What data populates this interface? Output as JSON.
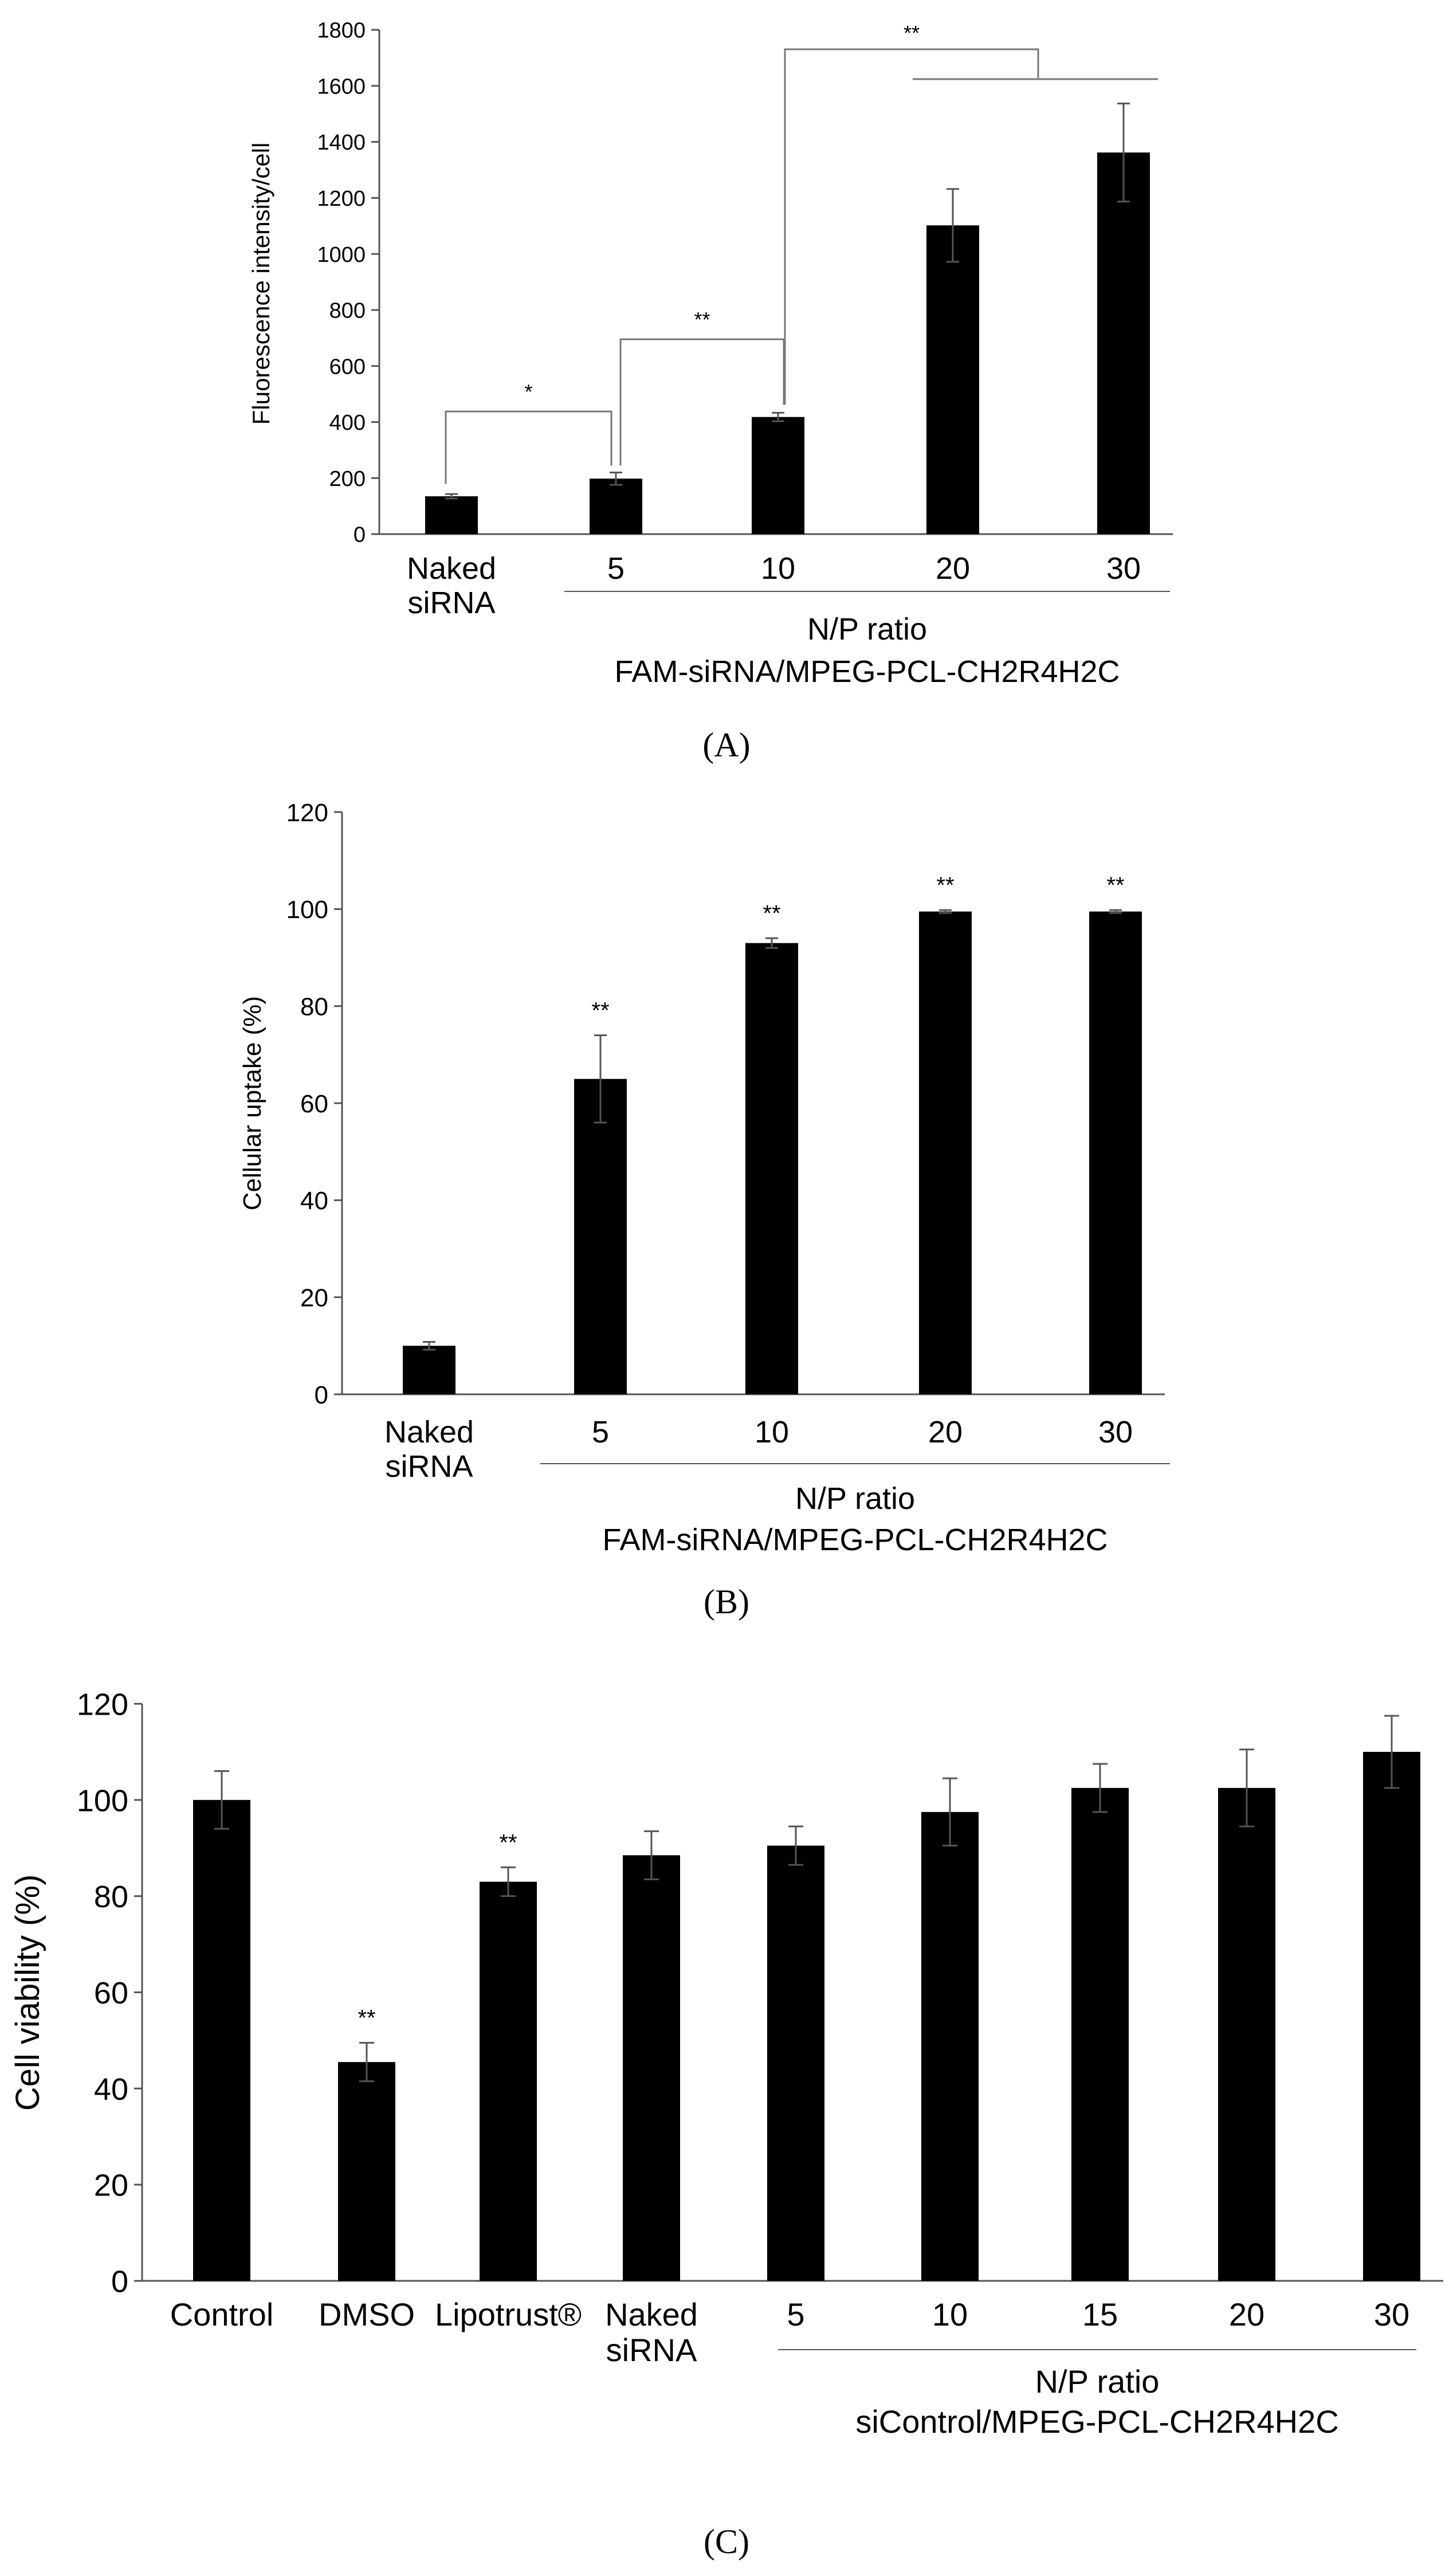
{
  "chart_data": [
    {
      "panel": "A",
      "type": "bar",
      "ylabel": "Fluorescence intensity/cell",
      "ylim": [
        0,
        1800
      ],
      "yticks": [
        0,
        200,
        400,
        600,
        800,
        1000,
        1200,
        1400,
        1600,
        1800
      ],
      "categories": [
        [
          "Naked",
          "siRNA"
        ],
        [
          "5"
        ],
        [
          "10"
        ],
        [
          "20"
        ],
        [
          "30"
        ]
      ],
      "values": [
        135,
        198,
        418,
        1102,
        1362
      ],
      "errors": [
        8,
        22,
        15,
        130,
        175
      ],
      "group_caption": [
        "N/P ratio",
        "FAM-siRNA/MPEG-PCL-CH2R4H2C"
      ],
      "significance": [
        {
          "from": 0,
          "to": 1,
          "label": "*"
        },
        {
          "from": 1,
          "to": 2,
          "label": "**"
        },
        {
          "from": 2,
          "to": [
            3,
            4
          ],
          "label": "**"
        }
      ]
    },
    {
      "panel": "B",
      "type": "bar",
      "ylabel": "Cellular uptake (%)",
      "ylim": [
        0,
        120
      ],
      "yticks": [
        0,
        20,
        40,
        60,
        80,
        100,
        120
      ],
      "categories": [
        [
          "Naked",
          "siRNA"
        ],
        [
          "5"
        ],
        [
          "10"
        ],
        [
          "20"
        ],
        [
          "30"
        ]
      ],
      "values": [
        10,
        65,
        93,
        99.5,
        99.5
      ],
      "errors": [
        0.8,
        9,
        1,
        0.3,
        0.3
      ],
      "stars": [
        "",
        "**",
        "**",
        "**",
        "**"
      ],
      "group_caption": [
        "N/P ratio",
        "FAM-siRNA/MPEG-PCL-CH2R4H2C"
      ]
    },
    {
      "panel": "C",
      "type": "bar",
      "ylabel": "Cell viability (%)",
      "ylim": [
        0,
        120
      ],
      "yticks": [
        0,
        20,
        40,
        60,
        80,
        100,
        120
      ],
      "categories": [
        [
          "Control"
        ],
        [
          "DMSO"
        ],
        [
          "Lipotrust®"
        ],
        [
          "Naked",
          "siRNA"
        ],
        [
          "5"
        ],
        [
          "10"
        ],
        [
          "15"
        ],
        [
          "20"
        ],
        [
          "30"
        ]
      ],
      "values": [
        100,
        45.5,
        83,
        88.5,
        90.5,
        97.5,
        102.5,
        102.5,
        110
      ],
      "errors": [
        6,
        4,
        3,
        5,
        4,
        7,
        5,
        8,
        7.5
      ],
      "stars": [
        "",
        "**",
        "**",
        "",
        "",
        "",
        "",
        "",
        ""
      ],
      "group_caption": [
        "N/P ratio",
        "siControl/MPEG-PCL-CH2R4H2C"
      ]
    }
  ],
  "panel_labels": [
    "(A)",
    "(B)",
    "(C)"
  ]
}
